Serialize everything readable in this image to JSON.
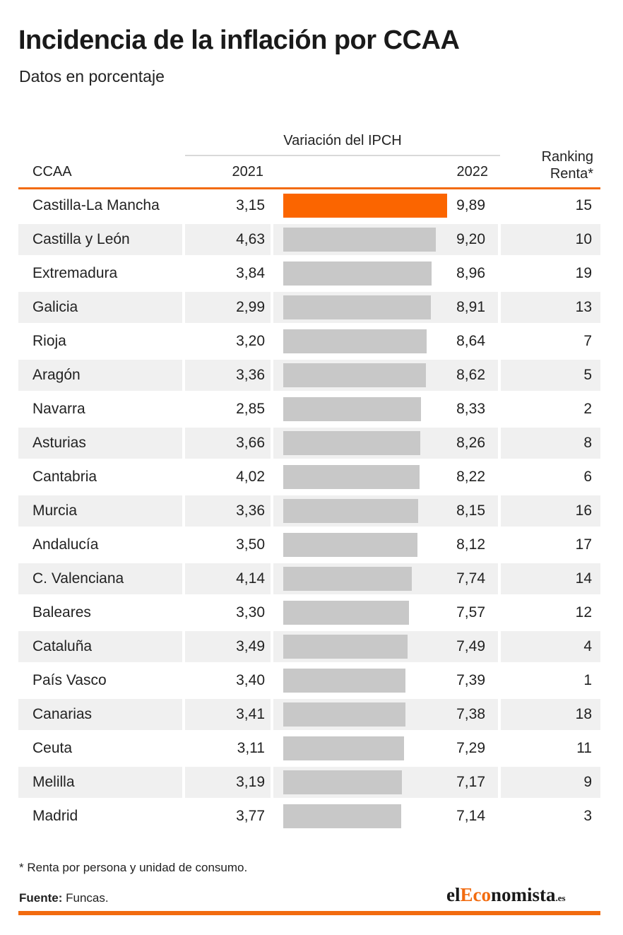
{
  "title": "Incidencia de la inflación por CCAA",
  "subtitle": "Datos en porcentaje",
  "table": {
    "group_header": "Variación del IPCH",
    "col_ccaa": "CCAA",
    "col_2021": "2021",
    "col_2022": "2022",
    "col_rank_line1": "Ranking",
    "col_rank_line2": "Renta*"
  },
  "footnote": "* Renta por persona y unidad de consumo.",
  "source_label": "Fuente:",
  "source_value": " Funcas.",
  "logo": {
    "el": "el",
    "e": "E",
    "co": "co",
    "nomista": "nomista",
    "es": ".es"
  },
  "colors": {
    "highlight": "#fb6500",
    "bar": "#c8c8c8",
    "accent": "#f26b0f",
    "row_shade": "#f0f0f0"
  },
  "chart_data": {
    "type": "table",
    "title": "Incidencia de la inflación por CCAA",
    "subtitle": "Datos en porcentaje",
    "columns": [
      "CCAA",
      "2021",
      "2022",
      "Ranking Renta*"
    ],
    "bar_column": "2022",
    "highlight_row": "Castilla-La Mancha",
    "rows": [
      {
        "ccaa": "Castilla-La Mancha",
        "v2021": "3,15",
        "v2022": "9,89",
        "rank": "15",
        "value2022": 9.89
      },
      {
        "ccaa": "Castilla y León",
        "v2021": "4,63",
        "v2022": "9,20",
        "rank": "10",
        "value2022": 9.2
      },
      {
        "ccaa": "Extremadura",
        "v2021": "3,84",
        "v2022": "8,96",
        "rank": "19",
        "value2022": 8.96
      },
      {
        "ccaa": "Galicia",
        "v2021": "2,99",
        "v2022": "8,91",
        "rank": "13",
        "value2022": 8.91
      },
      {
        "ccaa": "Rioja",
        "v2021": "3,20",
        "v2022": "8,64",
        "rank": "7",
        "value2022": 8.64
      },
      {
        "ccaa": "Aragón",
        "v2021": "3,36",
        "v2022": "8,62",
        "rank": "5",
        "value2022": 8.62
      },
      {
        "ccaa": "Navarra",
        "v2021": "2,85",
        "v2022": "8,33",
        "rank": "2",
        "value2022": 8.33
      },
      {
        "ccaa": "Asturias",
        "v2021": "3,66",
        "v2022": "8,26",
        "rank": "8",
        "value2022": 8.26
      },
      {
        "ccaa": "Cantabria",
        "v2021": "4,02",
        "v2022": "8,22",
        "rank": "6",
        "value2022": 8.22
      },
      {
        "ccaa": "Murcia",
        "v2021": "3,36",
        "v2022": "8,15",
        "rank": "16",
        "value2022": 8.15
      },
      {
        "ccaa": "Andalucía",
        "v2021": "3,50",
        "v2022": "8,12",
        "rank": "17",
        "value2022": 8.12
      },
      {
        "ccaa": "C. Valenciana",
        "v2021": "4,14",
        "v2022": "7,74",
        "rank": "14",
        "value2022": 7.74
      },
      {
        "ccaa": "Baleares",
        "v2021": "3,30",
        "v2022": "7,57",
        "rank": "12",
        "value2022": 7.57
      },
      {
        "ccaa": "Cataluña",
        "v2021": "3,49",
        "v2022": "7,49",
        "rank": "4",
        "value2022": 7.49
      },
      {
        "ccaa": "País Vasco",
        "v2021": "3,40",
        "v2022": "7,39",
        "rank": "1",
        "value2022": 7.39
      },
      {
        "ccaa": "Canarias",
        "v2021": "3,41",
        "v2022": "7,38",
        "rank": "18",
        "value2022": 7.38
      },
      {
        "ccaa": "Ceuta",
        "v2021": "3,11",
        "v2022": "7,29",
        "rank": "11",
        "value2022": 7.29
      },
      {
        "ccaa": "Melilla",
        "v2021": "3,19",
        "v2022": "7,17",
        "rank": "9",
        "value2022": 7.17
      },
      {
        "ccaa": "Madrid",
        "v2021": "3,77",
        "v2022": "7,14",
        "rank": "3",
        "value2022": 7.14
      }
    ]
  }
}
